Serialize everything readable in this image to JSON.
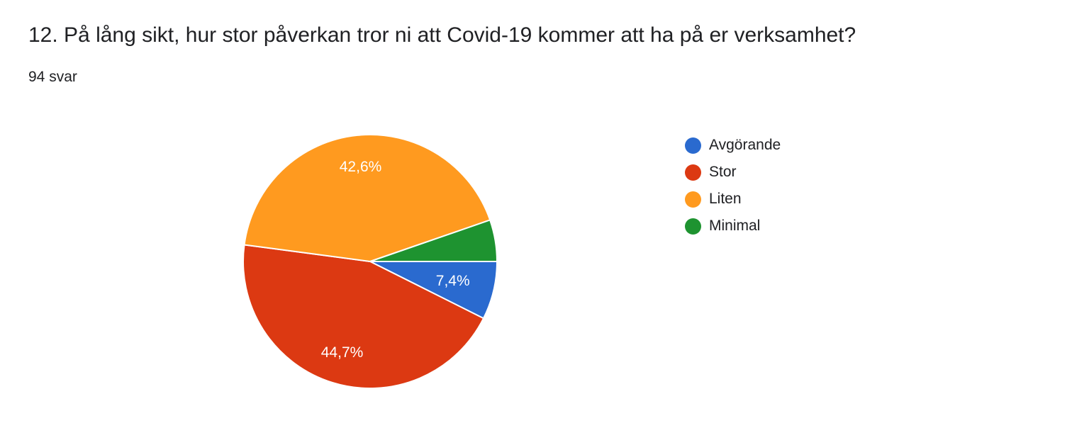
{
  "question": {
    "title": "12. På lång sikt, hur stor påverkan tror ni att Covid-19 kommer att ha på er verksamhet?",
    "response_count": "94 svar"
  },
  "chart_data": {
    "type": "pie",
    "categories": [
      "Avgörande",
      "Stor",
      "Liten",
      "Minimal"
    ],
    "values": [
      7.4,
      44.7,
      42.6,
      5.3
    ],
    "data_labels": [
      "7,4%",
      "44,7%",
      "42,6%",
      ""
    ],
    "colors": [
      "#2a6acf",
      "#dc3912",
      "#ff9a1f",
      "#1e9330"
    ],
    "legend_position": "right",
    "start_direction": "right",
    "direction": "clockwise"
  }
}
